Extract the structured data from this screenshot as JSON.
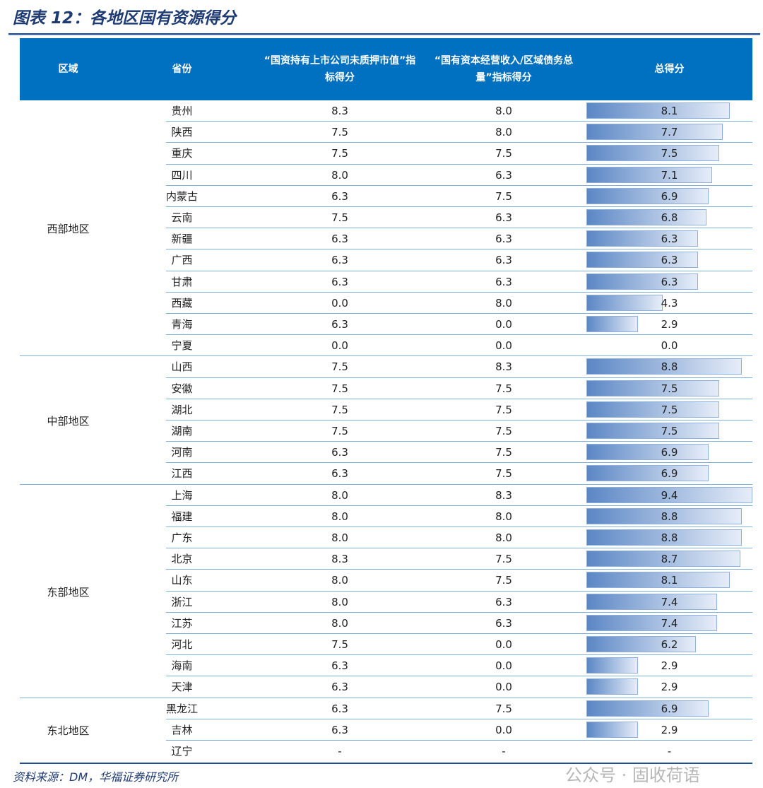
{
  "title": "图表 12：各地区国有资源得分",
  "headers": [
    "区域",
    "省份",
    "“国资持有上市公司未质押市值”指标得分",
    "“国有资本经营收入/区域债务总量”指标得分",
    "总得分"
  ],
  "regions": [
    {
      "name": "西部地区",
      "rows": [
        [
          "贵州",
          "8.3",
          "8.0",
          "8.1"
        ],
        [
          "陕西",
          "7.5",
          "8.0",
          "7.7"
        ],
        [
          "重庆",
          "7.5",
          "7.5",
          "7.5"
        ],
        [
          "四川",
          "8.0",
          "6.3",
          "7.1"
        ],
        [
          "内蒙古",
          "6.3",
          "7.5",
          "6.9"
        ],
        [
          "云南",
          "7.5",
          "6.3",
          "6.8"
        ],
        [
          "新疆",
          "6.3",
          "6.3",
          "6.3"
        ],
        [
          "广西",
          "6.3",
          "6.3",
          "6.3"
        ],
        [
          "甘肃",
          "6.3",
          "6.3",
          "6.3"
        ],
        [
          "西藏",
          "0.0",
          "8.0",
          "4.3"
        ],
        [
          "青海",
          "6.3",
          "0.0",
          "2.9"
        ],
        [
          "宁夏",
          "0.0",
          "0.0",
          "0.0"
        ]
      ]
    },
    {
      "name": "中部地区",
      "rows": [
        [
          "山西",
          "7.5",
          "8.3",
          "8.8"
        ],
        [
          "安徽",
          "7.5",
          "7.5",
          "7.5"
        ],
        [
          "湖北",
          "7.5",
          "7.5",
          "7.5"
        ],
        [
          "湖南",
          "7.5",
          "7.5",
          "7.5"
        ],
        [
          "河南",
          "6.3",
          "7.5",
          "6.9"
        ],
        [
          "江西",
          "6.3",
          "7.5",
          "6.9"
        ]
      ]
    },
    {
      "name": "东部地区",
      "rows": [
        [
          "上海",
          "8.0",
          "8.3",
          "9.4"
        ],
        [
          "福建",
          "8.0",
          "8.0",
          "8.8"
        ],
        [
          "广东",
          "8.0",
          "8.0",
          "8.8"
        ],
        [
          "北京",
          "8.3",
          "7.5",
          "8.7"
        ],
        [
          "山东",
          "8.0",
          "7.5",
          "8.1"
        ],
        [
          "浙江",
          "8.0",
          "6.3",
          "7.4"
        ],
        [
          "江苏",
          "8.0",
          "6.3",
          "7.4"
        ],
        [
          "河北",
          "7.5",
          "0.0",
          "6.2"
        ],
        [
          "海南",
          "6.3",
          "0.0",
          "2.9"
        ],
        [
          "天津",
          "6.3",
          "0.0",
          "2.9"
        ]
      ]
    },
    {
      "name": "东北地区",
      "rows": [
        [
          "黑龙江",
          "6.3",
          "7.5",
          "6.9"
        ],
        [
          "吉林",
          "6.3",
          "0.0",
          "2.9"
        ],
        [
          "辽宁",
          "-",
          "-",
          "-"
        ]
      ]
    }
  ],
  "source": "资料来源：DM，华福证券研究所",
  "watermark": "公众号 · 固收荷语",
  "colors": {
    "header": "#0070C0",
    "bar_start": "#5b87c5",
    "bar_end": "#e6edf8"
  }
}
